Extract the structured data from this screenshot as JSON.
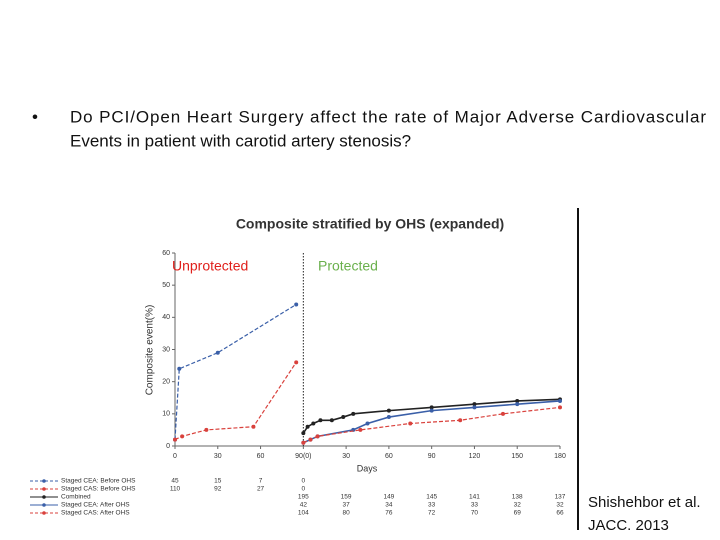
{
  "slide": {
    "bullet": [
      "Do PCI/Open Heart Surgery affect the rate of Major Adverse Cardiovascular",
      "Events in patient with carotid artery stenosis?"
    ],
    "citation": [
      "Shishehbor et al.",
      "JACC. 2013"
    ]
  },
  "chart_data": {
    "type": "line",
    "title": "Composite stratified by OHS (expanded)",
    "y_label": "Composite event(%)",
    "x_label": "Days",
    "annotations": [
      {
        "text": "Unprotected",
        "color": "#e0201b"
      },
      {
        "text": "Protected",
        "color": "#6ab04c"
      }
    ],
    "divider_x": 90,
    "xlim": [
      0,
      270
    ],
    "ylim": [
      0,
      60
    ],
    "xticks": [
      0,
      30,
      60,
      {
        "value": 90,
        "label": "90(0)"
      },
      {
        "value": 120,
        "label": "30"
      },
      {
        "value": 150,
        "label": "60"
      },
      {
        "value": 180,
        "label": "90"
      },
      {
        "value": 210,
        "label": "120"
      },
      {
        "value": 240,
        "label": "150"
      },
      {
        "value": 270,
        "label": "180"
      }
    ],
    "yticks": [
      0,
      10,
      20,
      30,
      40,
      50,
      60
    ],
    "series": [
      {
        "name": "Staged CEA: Before OHS",
        "color": "#3a5fa8",
        "style": "dashed",
        "x": [
          0,
          3,
          30,
          85
        ],
        "values": [
          2,
          24,
          29,
          44
        ]
      },
      {
        "name": "Staged CAS: Before OHS",
        "color": "#d9413c",
        "style": "dashed",
        "x": [
          0,
          5,
          22,
          55,
          85
        ],
        "values": [
          2,
          3,
          5,
          6,
          26
        ]
      },
      {
        "name": "Combined",
        "color": "#222222",
        "style": "solid",
        "x": [
          90,
          93,
          97,
          102,
          110,
          118,
          125,
          150,
          180,
          210,
          240,
          270
        ],
        "values": [
          4,
          6,
          7,
          8,
          8,
          9,
          10,
          11,
          12,
          13,
          14,
          14.5
        ]
      },
      {
        "name": "Staged CEA: After OHS",
        "color": "#3a5fa8",
        "style": "solid",
        "x": [
          90,
          95,
          100,
          125,
          135,
          150,
          180,
          210,
          240,
          270
        ],
        "values": [
          1,
          2,
          3,
          5,
          7,
          9,
          11,
          12,
          13,
          14
        ]
      },
      {
        "name": "Staged CAS: After OHS",
        "color": "#d9413c",
        "style": "dashed",
        "x": [
          90,
          95,
          100,
          130,
          165,
          200,
          230,
          270
        ],
        "values": [
          1,
          2,
          3,
          5,
          7,
          8,
          10,
          12
        ]
      }
    ],
    "at_risk": [
      {
        "x": [
          0,
          30,
          60,
          90
        ],
        "counts": [
          45,
          15,
          7,
          0
        ]
      },
      {
        "x": [
          0,
          30,
          60,
          90
        ],
        "counts": [
          110,
          92,
          27,
          0
        ]
      },
      {
        "x": [
          90,
          120,
          150,
          180,
          210,
          240,
          270
        ],
        "counts": [
          195,
          159,
          149,
          145,
          141,
          138,
          137
        ]
      },
      {
        "x": [
          90,
          120,
          150,
          180,
          210,
          240,
          270
        ],
        "counts": [
          42,
          37,
          34,
          33,
          33,
          32,
          32
        ]
      },
      {
        "x": [
          90,
          120,
          150,
          180,
          210,
          240,
          270
        ],
        "counts": [
          104,
          80,
          76,
          72,
          70,
          69,
          66
        ]
      }
    ]
  }
}
